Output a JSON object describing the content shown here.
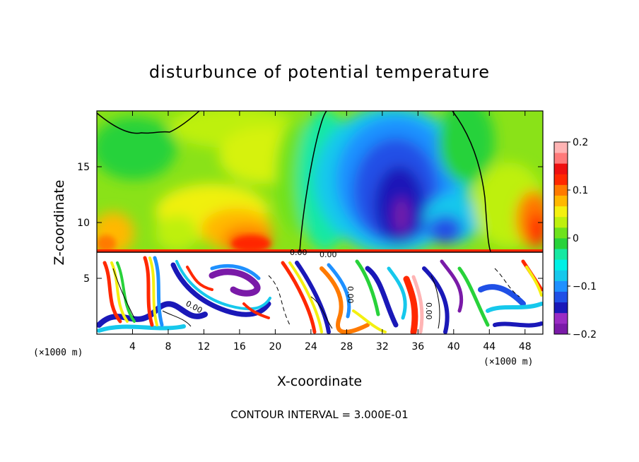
{
  "chart_data": {
    "type": "heatmap",
    "title": "disturbunce of potential temperature",
    "xlabel": "X-coordinate",
    "ylabel": "Z-coordinate",
    "x_unit": "(×1000 m)",
    "x_unit_right": "(×1000 m)",
    "xlim": [
      0,
      50
    ],
    "ylim": [
      0,
      20
    ],
    "x_ticks": [
      "4",
      "8",
      "12",
      "16",
      "20",
      "24",
      "28",
      "32",
      "36",
      "40",
      "44",
      "48"
    ],
    "y_ticks": [
      "5",
      "10",
      "15"
    ],
    "colorbar": {
      "range": [
        -0.2,
        0.2
      ],
      "labels": [
        "0.2",
        "0.1",
        "0",
        "−0.1",
        "−0.2"
      ],
      "colors": [
        "#7a1aa8",
        "#9a2cc4",
        "#1a18b8",
        "#2050e6",
        "#1e90ff",
        "#16c8ec",
        "#00f0e6",
        "#16e8a2",
        "#28d23a",
        "#6ee21c",
        "#bef00e",
        "#f4f010",
        "#ffb800",
        "#ff7a00",
        "#ff2800",
        "#ee1010",
        "#ff7a7a",
        "#ffb4b4"
      ]
    },
    "contour_labels": [
      "0.00",
      "0.00",
      "0.00",
      "0.00",
      "0.00"
    ],
    "contour_interval_text": "CONTOUR INTERVAL = 3.000E-01",
    "grid": false,
    "legend": "colorbar-right"
  }
}
